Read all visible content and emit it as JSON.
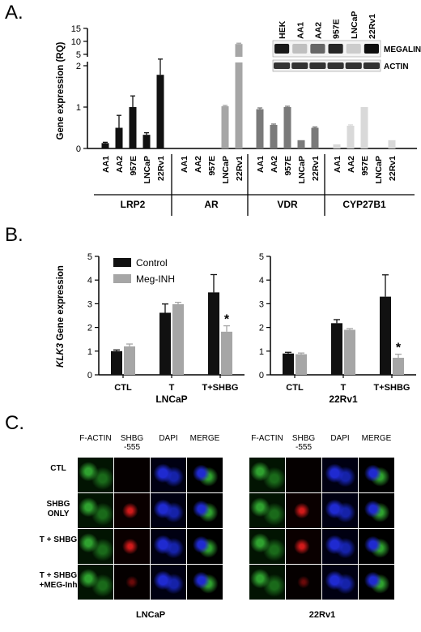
{
  "panels": {
    "a": {
      "letter": "A."
    },
    "b": {
      "letter": "B."
    },
    "c": {
      "letter": "C."
    }
  },
  "colors": {
    "black": "#111111",
    "dark_gray": "#5f5f5f",
    "mid_gray": "#7a7a7a",
    "light_gray": "#a6a6a6",
    "very_light_gray": "#d9d9d9",
    "green_stain": "#2fa12f",
    "red_stain": "#d21a1a",
    "blue_stain": "#1f2ad0"
  },
  "chart_data": [
    {
      "type": "bar",
      "panel": "A",
      "ylabel": "Gene expression (RQ)",
      "yaxis": {
        "scale": "broken",
        "lower_ticks": [
          0,
          1,
          2
        ],
        "upper_ticks": [
          5,
          10,
          15
        ]
      },
      "cell_lines": [
        "AA1",
        "AA2",
        "957E",
        "LNCaP",
        "22Rv1"
      ],
      "groups": [
        {
          "name": "LRP2",
          "color": "#111111",
          "values": [
            0.13,
            0.5,
            1.0,
            0.33,
            1.78
          ],
          "errors": [
            0.02,
            0.3,
            0.27,
            0.05,
            0.38
          ]
        },
        {
          "name": "AR",
          "color": "#a6a6a6",
          "values": [
            0,
            0,
            0,
            1.02,
            9.0
          ],
          "errors": [
            0,
            0,
            0,
            0.02,
            0.3
          ]
        },
        {
          "name": "VDR",
          "color": "#7a7a7a",
          "values": [
            0.95,
            0.57,
            1.0,
            0.2,
            0.5
          ],
          "errors": [
            0.03,
            0.02,
            0.02,
            0.01,
            0.02
          ]
        },
        {
          "name": "CYP27B1",
          "color": "#d9d9d9",
          "values": [
            0.1,
            0.55,
            1.0,
            0,
            0.2
          ],
          "errors": [
            0.0,
            0.02,
            0.01,
            0,
            0.0
          ]
        }
      ],
      "western_blot": {
        "lanes": [
          "HEK",
          "AA1",
          "AA2",
          "957E",
          "LNCaP",
          "22Rv1"
        ],
        "bands": [
          "MEGALIN",
          "ACTIN"
        ],
        "megalin_intensity": [
          0.9,
          0.25,
          0.6,
          0.85,
          0.2,
          0.95
        ],
        "actin_intensity": [
          0.8,
          0.8,
          0.8,
          0.8,
          0.8,
          0.8
        ]
      }
    },
    {
      "type": "bar",
      "panel": "B-left",
      "ylabel": "KLK3 Gene expression",
      "ylabel_italic_part": "KLK3",
      "ylabel_rest": " Gene expression",
      "xlabel": "LNCaP",
      "ylim": [
        0,
        5
      ],
      "yticks": [
        0,
        1,
        2,
        3,
        4,
        5
      ],
      "categories": [
        "CTL",
        "T",
        "T+SHBG"
      ],
      "series": [
        {
          "name": "Control",
          "color": "#111111",
          "values": [
            1.0,
            2.62,
            3.48
          ],
          "errors": [
            0.05,
            0.37,
            0.75
          ]
        },
        {
          "name": "Meg-INH",
          "color": "#a6a6a6",
          "values": [
            1.2,
            2.98,
            1.82
          ],
          "errors": [
            0.1,
            0.08,
            0.25
          ]
        }
      ],
      "annotations": [
        {
          "category": "T+SHBG",
          "series": "Meg-INH",
          "text": "*"
        }
      ]
    },
    {
      "type": "bar",
      "panel": "B-right",
      "xlabel": "22Rv1",
      "ylim": [
        0,
        5
      ],
      "yticks": [
        0,
        1,
        2,
        3,
        4,
        5
      ],
      "categories": [
        "CTL",
        "T",
        "T+SHBG"
      ],
      "series": [
        {
          "name": "Control",
          "color": "#111111",
          "values": [
            0.9,
            2.18,
            3.3
          ],
          "errors": [
            0.05,
            0.15,
            0.92
          ]
        },
        {
          "name": "Meg-INH",
          "color": "#a6a6a6",
          "values": [
            0.87,
            1.9,
            0.72
          ],
          "errors": [
            0.05,
            0.05,
            0.15
          ]
        }
      ],
      "annotations": [
        {
          "category": "T+SHBG",
          "series": "Meg-INH",
          "text": "*"
        }
      ]
    }
  ],
  "micrographs": {
    "columns": [
      "F-ACTIN",
      "SHBG\n-555",
      "DAPI",
      "MERGE"
    ],
    "rows": [
      "CTL",
      "SHBG\nONLY",
      "T + SHBG",
      "T + SHBG\n+MEG-Inh"
    ],
    "panels": [
      {
        "label": "LNCaP"
      },
      {
        "label": "22Rv1"
      }
    ]
  }
}
